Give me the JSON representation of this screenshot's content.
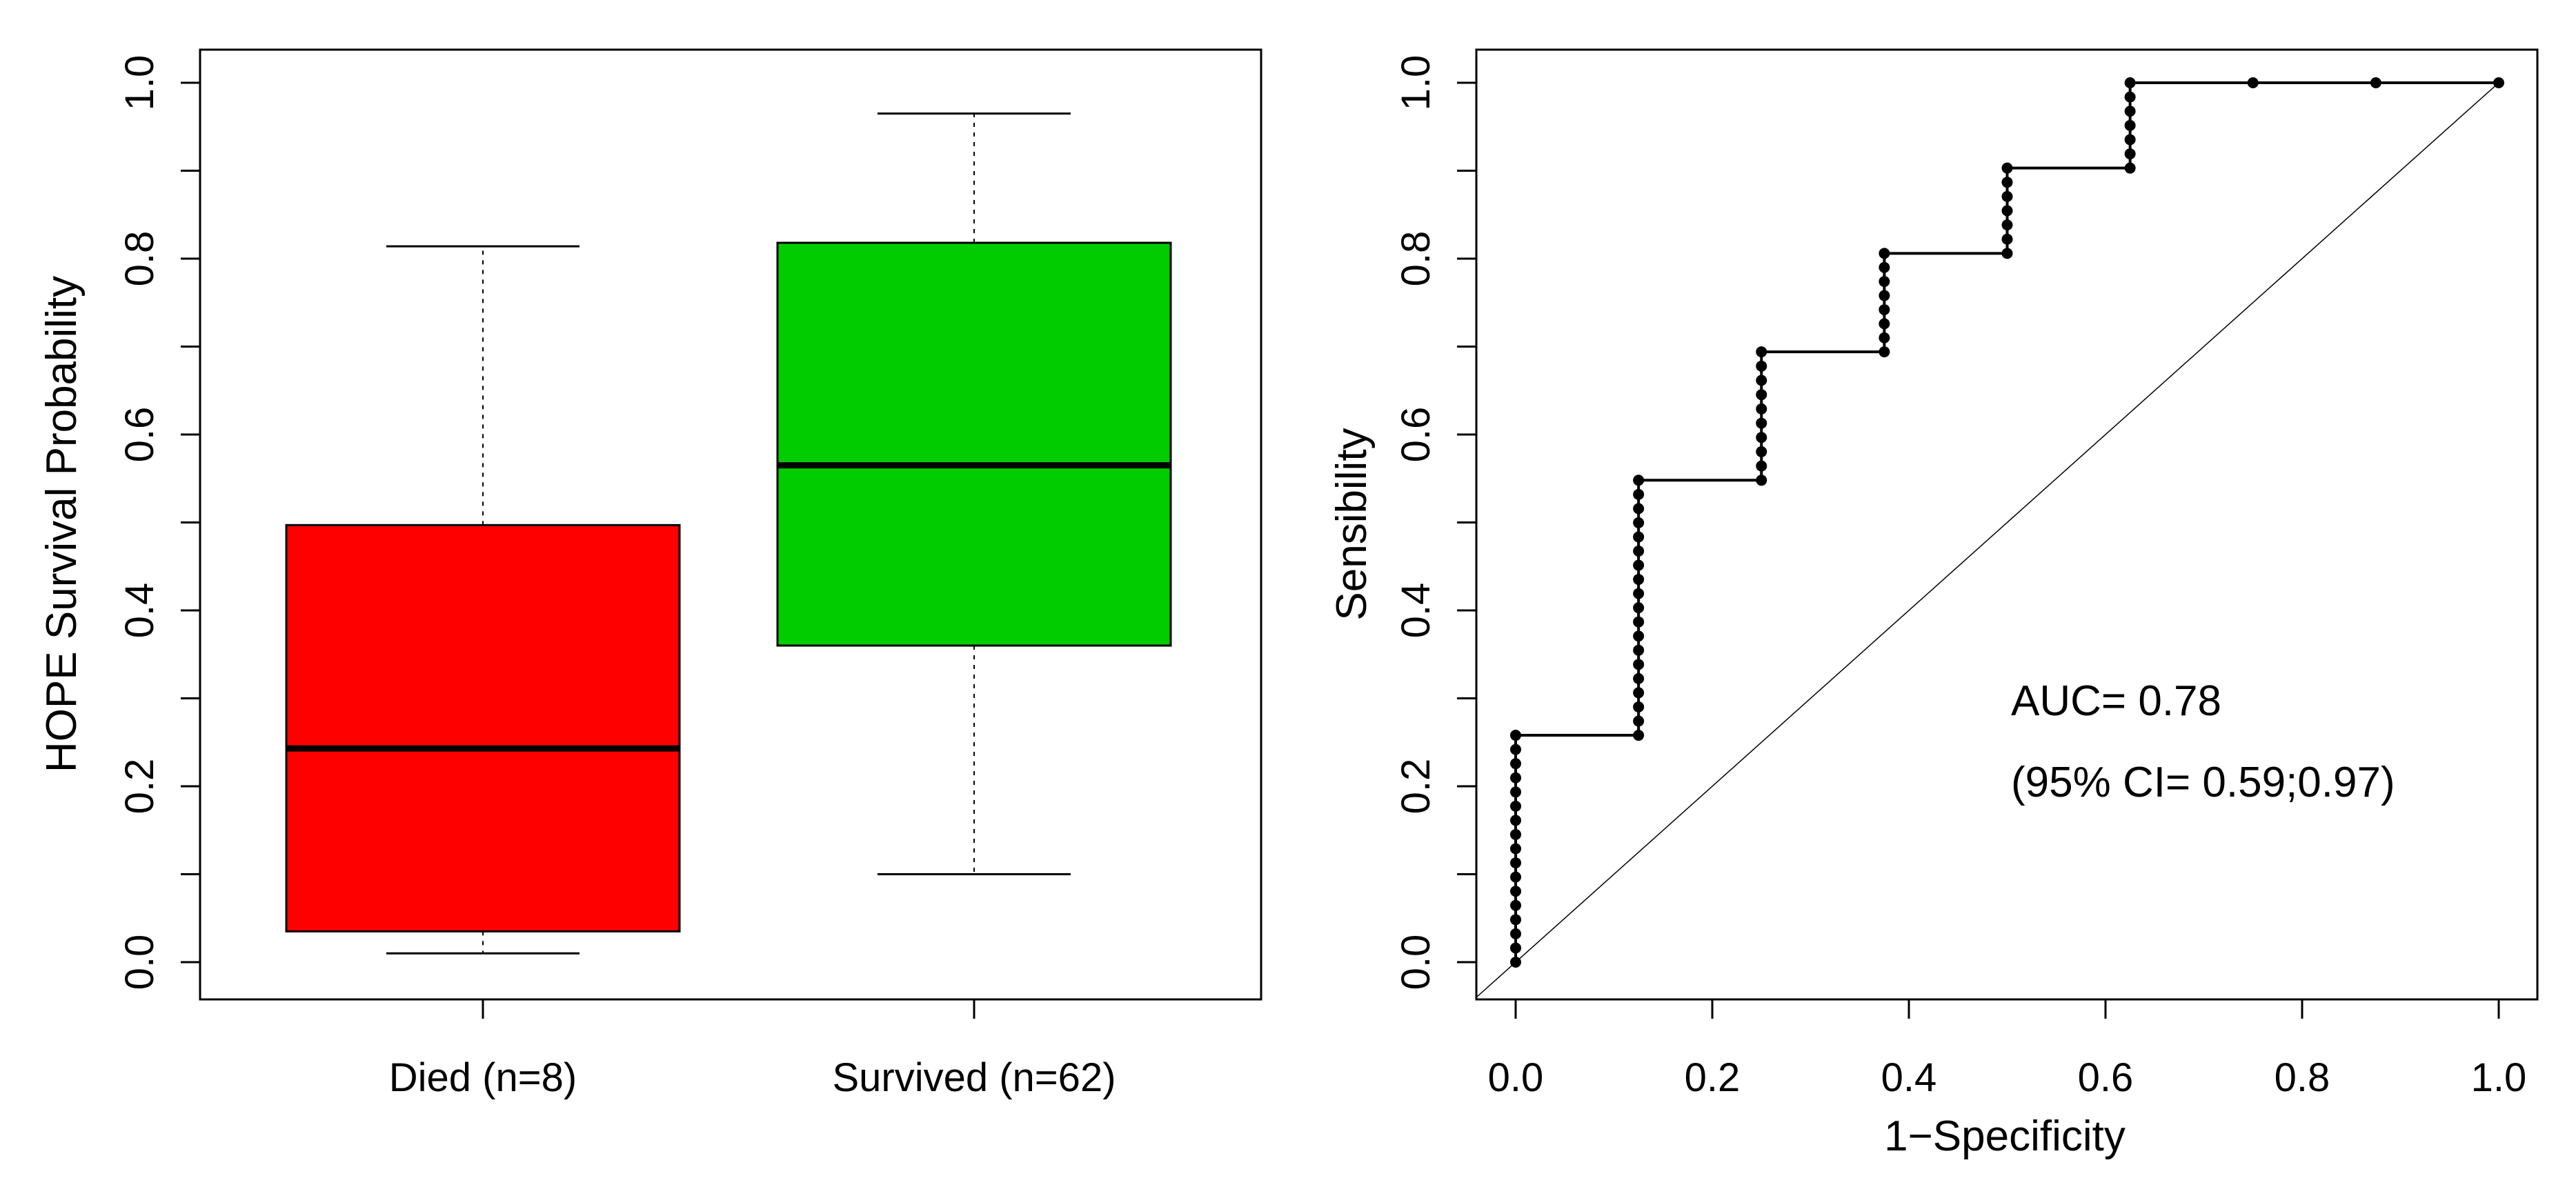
{
  "chart_data": [
    {
      "type": "box",
      "ylabel": "HOPE Survival Probability",
      "ylim": [
        0,
        1
      ],
      "yticks": [
        "0.0",
        "0.2",
        "0.4",
        "0.6",
        "0.8",
        "1.0"
      ],
      "ytick_values": [
        0,
        0.2,
        0.4,
        0.6,
        0.8,
        1.0
      ],
      "groups": [
        {
          "label": "Died (n=8)",
          "color": "#ff0000",
          "min": 0.01,
          "q1": 0.035,
          "median": 0.243,
          "q3": 0.497,
          "max": 0.814
        },
        {
          "label": "Survived (n=62)",
          "color": "#00cc00",
          "min": 0.1,
          "q1": 0.36,
          "median": 0.565,
          "q3": 0.818,
          "max": 0.965
        }
      ]
    },
    {
      "type": "line",
      "xlabel": "1−Specificity",
      "ylabel": "Sensibility",
      "xlim": [
        0,
        1
      ],
      "ylim": [
        0,
        1
      ],
      "xticks": [
        "0.0",
        "0.2",
        "0.4",
        "0.6",
        "0.8",
        "1.0"
      ],
      "yticks": [
        "0.0",
        "0.2",
        "0.4",
        "0.6",
        "0.8",
        "1.0"
      ],
      "tick_values": [
        0,
        0.2,
        0.4,
        0.6,
        0.8,
        1.0
      ],
      "auc_label": "AUC= 0.78",
      "ci_label": "(95% CI= 0.59;0.97)",
      "roc_steps": [
        {
          "x": 0.0,
          "y_from": 0.0,
          "y_to": 0.258,
          "n_points": 17
        },
        {
          "x": 0.125,
          "y_from": 0.258,
          "y_to": 0.548,
          "n_points": 19
        },
        {
          "x": 0.25,
          "y_from": 0.548,
          "y_to": 0.694,
          "n_points": 10
        },
        {
          "x": 0.375,
          "y_from": 0.694,
          "y_to": 0.806,
          "n_points": 8
        },
        {
          "x": 0.5,
          "y_from": 0.806,
          "y_to": 0.903,
          "n_points": 7
        },
        {
          "x": 0.625,
          "y_from": 0.903,
          "y_to": 1.0,
          "n_points": 7
        }
      ],
      "roc_tail": [
        {
          "x": 0.75,
          "y": 1.0
        },
        {
          "x": 0.875,
          "y": 1.0
        },
        {
          "x": 1.0,
          "y": 1.0
        }
      ]
    }
  ]
}
